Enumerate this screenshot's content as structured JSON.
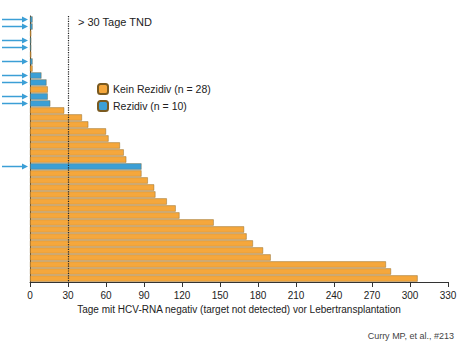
{
  "chart_data": {
    "type": "bar",
    "orientation": "horizontal",
    "categories": [
      null,
      null,
      null,
      null,
      null,
      null,
      null,
      null,
      null,
      null,
      null,
      null,
      null,
      null,
      null,
      null,
      null,
      null,
      null,
      null,
      null,
      null,
      null,
      null,
      null,
      null,
      null,
      null,
      null,
      null,
      null,
      null,
      null,
      null,
      null,
      null,
      null,
      null
    ],
    "series": [
      {
        "name": "Kein Rezidiv (n = 28)",
        "color": "#f5a73c",
        "values": [
          null,
          null,
          1,
          null,
          null,
          1,
          null,
          2,
          null,
          null,
          14,
          null,
          null,
          27,
          41,
          46,
          60,
          62,
          71,
          74,
          76,
          null,
          88,
          93,
          98,
          99,
          108,
          115,
          118,
          145,
          169,
          171,
          176,
          184,
          190,
          281,
          285,
          306
        ]
      },
      {
        "name": "Rezidiv (n = 10)",
        "color": "#3b9fd6",
        "values": [
          2,
          2,
          null,
          1,
          1,
          null,
          2,
          null,
          9,
          13,
          null,
          14,
          16,
          null,
          null,
          null,
          null,
          null,
          null,
          null,
          null,
          88,
          null,
          null,
          null,
          null,
          null,
          null,
          null,
          null,
          null,
          null,
          null,
          null,
          null,
          null,
          null,
          null
        ]
      }
    ],
    "xlim": [
      0,
      330
    ],
    "xticks": [
      0,
      30,
      60,
      90,
      120,
      150,
      180,
      210,
      240,
      270,
      300,
      330
    ],
    "x_label": "Tage mit HCV-RNA negativ (target not detected) vor Lebertransplantation",
    "annotations": [
      {
        "x": 30,
        "label": "> 30 Tage TND",
        "line_style": "dotted"
      }
    ],
    "source": "Curry MP, et al., #213",
    "legend": "upper left",
    "grid": false,
    "tick_labels": "x"
  }
}
